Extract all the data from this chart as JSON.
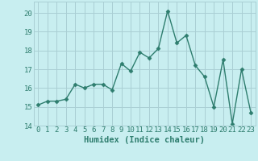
{
  "x": [
    0,
    1,
    2,
    3,
    4,
    5,
    6,
    7,
    8,
    9,
    10,
    11,
    12,
    13,
    14,
    15,
    16,
    17,
    18,
    19,
    20,
    21,
    22,
    23
  ],
  "y": [
    15.1,
    15.3,
    15.3,
    15.4,
    16.2,
    16.0,
    16.2,
    16.2,
    15.9,
    17.3,
    16.9,
    17.9,
    17.6,
    18.1,
    20.1,
    18.4,
    18.8,
    17.2,
    16.6,
    15.0,
    17.5,
    14.1,
    17.0,
    14.7
  ],
  "line_color": "#2e7d6e",
  "marker": "D",
  "marker_size": 2.5,
  "background_color": "#c8eef0",
  "grid_color": "#aacfd4",
  "xlabel": "Humidex (Indice chaleur)",
  "ylabel": "",
  "xlim": [
    -0.5,
    23.5
  ],
  "ylim": [
    14.0,
    20.6
  ],
  "yticks": [
    14,
    15,
    16,
    17,
    18,
    19,
    20
  ],
  "xticks": [
    0,
    1,
    2,
    3,
    4,
    5,
    6,
    7,
    8,
    9,
    10,
    11,
    12,
    13,
    14,
    15,
    16,
    17,
    18,
    19,
    20,
    21,
    22,
    23
  ],
  "xlabel_fontsize": 7.5,
  "tick_fontsize": 6.5,
  "line_width": 1.0,
  "label_color": "#2e7d6e"
}
